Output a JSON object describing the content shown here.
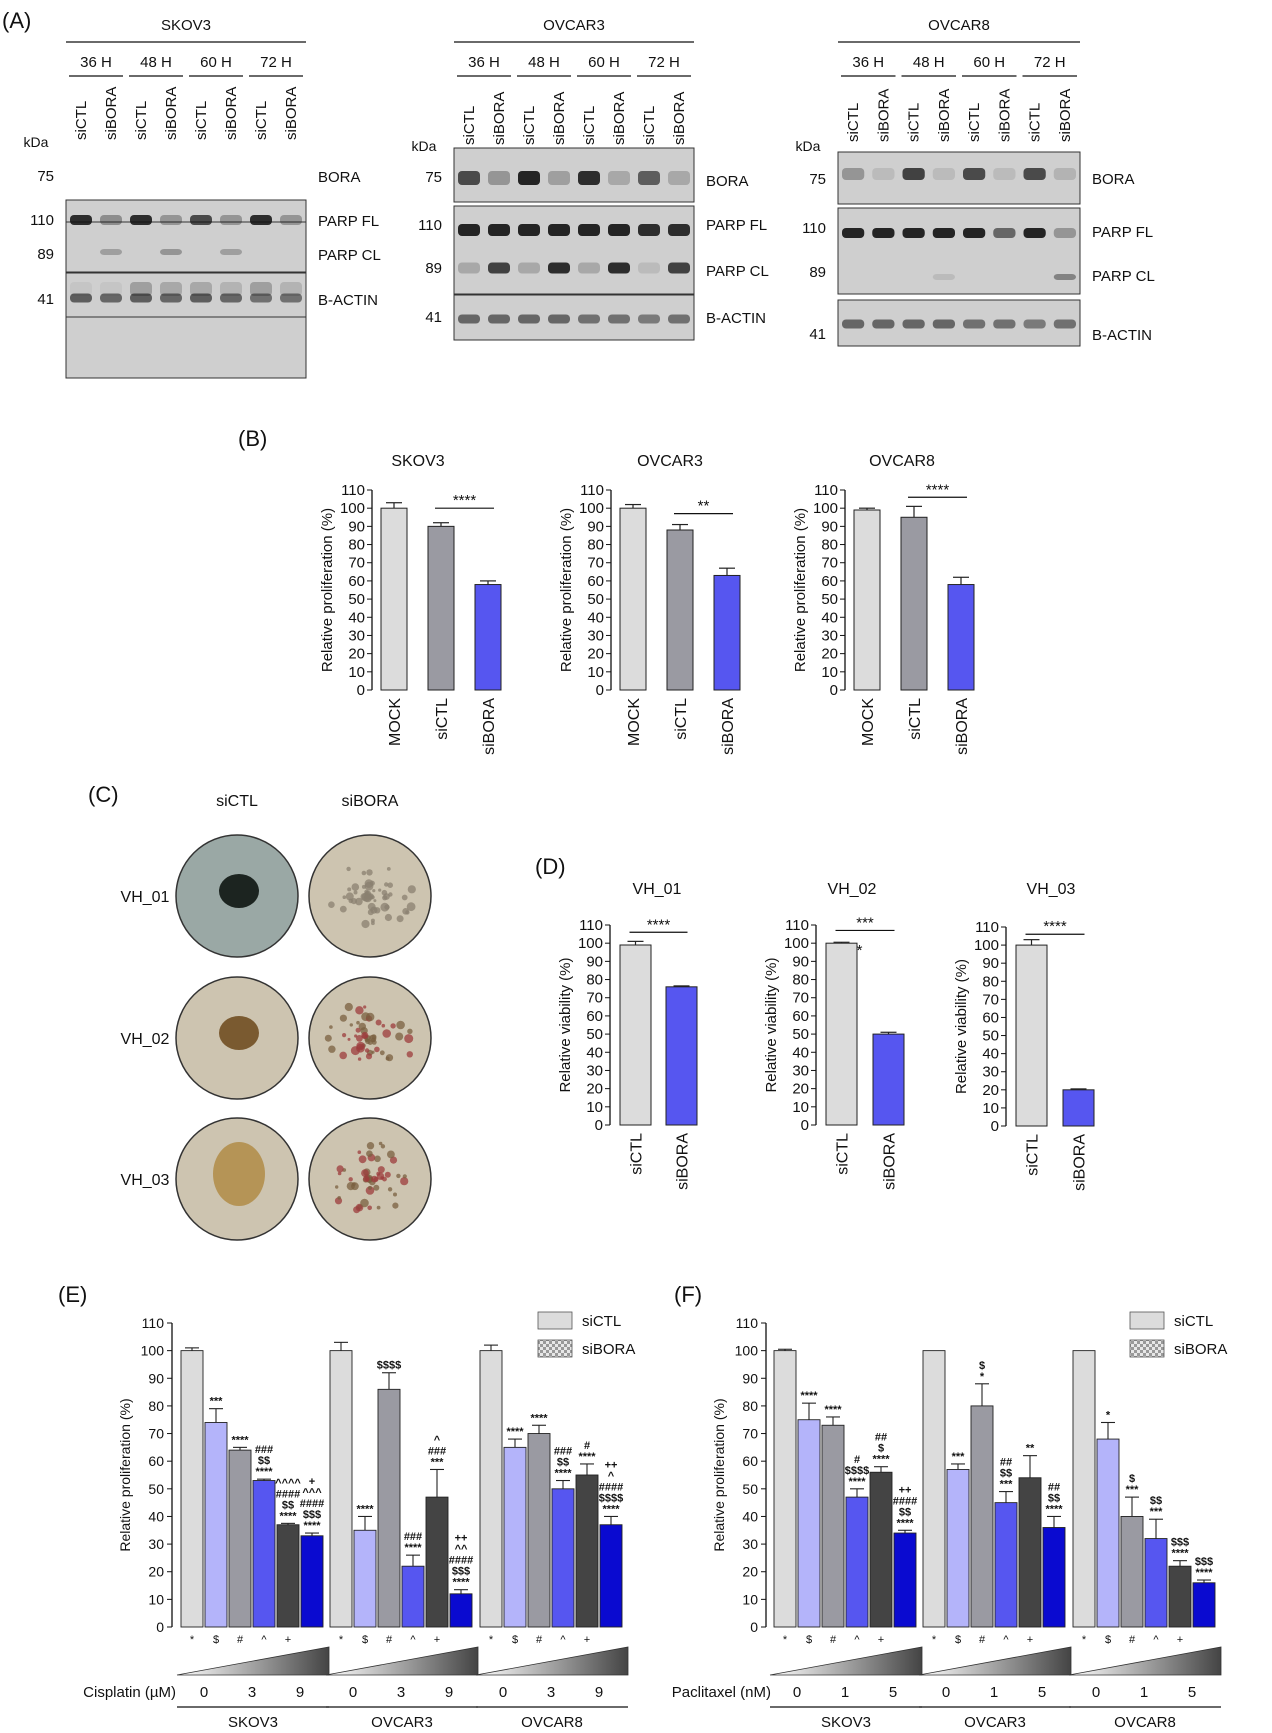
{
  "panels": {
    "A": "(A)",
    "B": "(B)",
    "C": "(C)",
    "D": "(D)",
    "E": "(E)",
    "F": "(F)"
  },
  "colors": {
    "mock": "#dcdcdc",
    "ctl": "#9a9aa2",
    "bora": "#5656f0",
    "light": "#b4b4fa",
    "dark": "#444444",
    "navy": "#0a0ad0"
  },
  "blots": {
    "kda": "kDa",
    "lanes": [
      "siCTL",
      "siBORA",
      "siCTL",
      "siBORA",
      "siCTL",
      "siBORA",
      "siCTL",
      "siBORA"
    ],
    "times": [
      "36 H",
      "48 H",
      "60 H",
      "72 H"
    ],
    "cells": [
      {
        "name": "SKOV3",
        "markers": {
          "m75": "75",
          "m110": "110",
          "m89": "89",
          "m41": "41"
        },
        "bands": [
          "BORA",
          "PARP FL",
          "PARP CL",
          "B-ACTIN"
        ]
      },
      {
        "name": "OVCAR3",
        "markers": {
          "m75": "75",
          "m110": "110",
          "m89": "89",
          "m41": "41"
        },
        "bands": [
          "BORA",
          "PARP FL",
          "PARP CL",
          "B-ACTIN"
        ]
      },
      {
        "name": "OVCAR8",
        "markers": {
          "m75": "75",
          "m110": "110",
          "m89": "89",
          "m41": "41"
        },
        "bands": [
          "BORA",
          "PARP FL",
          "PARP CL",
          "B-ACTIN"
        ]
      }
    ]
  },
  "organoids": {
    "cols": [
      "siCTL",
      "siBORA"
    ],
    "rows": [
      "VH_01",
      "VH_02",
      "VH_03"
    ]
  },
  "chart_data": [
    {
      "id": "B1",
      "type": "bar",
      "title": "SKOV3",
      "ylabel": "Relative proliferation (%)",
      "ylim": [
        0,
        110
      ],
      "yticks": [
        0,
        10,
        20,
        30,
        40,
        50,
        60,
        70,
        80,
        90,
        100,
        110
      ],
      "categories": [
        "MOCK",
        "siCTL",
        "siBORA"
      ],
      "values": [
        100,
        90,
        58
      ],
      "errors": [
        3,
        2,
        2
      ],
      "bar_colors": [
        "#dcdcdc",
        "#9a9aa2",
        "#5656f0"
      ],
      "sig": {
        "label": "****",
        "from": 1,
        "to": 2,
        "y": 100
      }
    },
    {
      "id": "B2",
      "type": "bar",
      "title": "OVCAR3",
      "ylabel": "Relative proliferation (%)",
      "ylim": [
        0,
        110
      ],
      "yticks": [
        0,
        10,
        20,
        30,
        40,
        50,
        60,
        70,
        80,
        90,
        100,
        110
      ],
      "categories": [
        "MOCK",
        "siCTL",
        "siBORA"
      ],
      "values": [
        100,
        88,
        63
      ],
      "errors": [
        2,
        3,
        4
      ],
      "bar_colors": [
        "#dcdcdc",
        "#9a9aa2",
        "#5656f0"
      ],
      "sig": {
        "label": "**",
        "from": 1,
        "to": 2,
        "y": 97
      }
    },
    {
      "id": "B3",
      "type": "bar",
      "title": "OVCAR8",
      "ylabel": "Relative proliferation (%)",
      "ylim": [
        0,
        110
      ],
      "yticks": [
        0,
        10,
        20,
        30,
        40,
        50,
        60,
        70,
        80,
        90,
        100,
        110
      ],
      "categories": [
        "MOCK",
        "siCTL",
        "siBORA"
      ],
      "values": [
        99,
        95,
        58
      ],
      "errors": [
        1,
        6,
        4
      ],
      "bar_colors": [
        "#dcdcdc",
        "#9a9aa2",
        "#5656f0"
      ],
      "sig": {
        "label": "****",
        "from": 1,
        "to": 2,
        "y": 106
      }
    },
    {
      "id": "D1",
      "type": "bar",
      "title": "VH_01",
      "ylabel": "Relative viability  (%)",
      "ylim": [
        0,
        110
      ],
      "yticks": [
        0,
        10,
        20,
        30,
        40,
        50,
        60,
        70,
        80,
        90,
        100,
        110
      ],
      "categories": [
        "siCTL",
        "siBORA"
      ],
      "values": [
        99,
        76
      ],
      "errors": [
        2,
        0.5
      ],
      "bar_colors": [
        "#dcdcdc",
        "#5656f0"
      ],
      "sig": {
        "label": "****",
        "from": 0,
        "to": 1,
        "y": 106
      }
    },
    {
      "id": "D2",
      "type": "bar",
      "title": "VH_02",
      "ylabel": "Relative viability  (%)",
      "ylim": [
        0,
        110
      ],
      "yticks": [
        0,
        10,
        20,
        30,
        40,
        50,
        60,
        70,
        80,
        90,
        100,
        110
      ],
      "categories": [
        "siCTL",
        "siBORA"
      ],
      "values": [
        100,
        50
      ],
      "errors": [
        0.5,
        1
      ],
      "bar_colors": [
        "#dcdcdc",
        "#5656f0"
      ],
      "sig": {
        "label": "***",
        "from": 0,
        "to": 1,
        "y": 107
      },
      "extra": {
        "label": "*",
        "cat": 0,
        "y": 100
      }
    },
    {
      "id": "D3",
      "type": "bar",
      "title": "VH_03",
      "ylabel": "Relative viability  (%)",
      "ylim": [
        0,
        110
      ],
      "yticks": [
        0,
        10,
        20,
        30,
        40,
        50,
        60,
        70,
        80,
        90,
        100,
        110
      ],
      "categories": [
        "siCTL",
        "siBORA"
      ],
      "values": [
        100,
        20
      ],
      "errors": [
        3,
        0.5
      ],
      "bar_colors": [
        "#dcdcdc",
        "#5656f0"
      ],
      "sig": {
        "label": "****",
        "from": 0,
        "to": 1,
        "y": 106
      }
    },
    {
      "id": "E",
      "type": "bar",
      "ylabel": "Relative proliferation (%)",
      "ylim": [
        0,
        110
      ],
      "yticks": [
        0,
        10,
        20,
        30,
        40,
        50,
        60,
        70,
        80,
        90,
        100,
        110
      ],
      "legend": [
        "siCTL",
        "siBORA"
      ],
      "drug": "Cisplatin (µM)",
      "doses": [
        "0",
        "3",
        "9"
      ],
      "markers": [
        "*",
        "$",
        "#",
        "^",
        "+"
      ],
      "groups": [
        {
          "name": "SKOV3",
          "values": [
            100,
            74,
            64,
            53,
            37,
            33
          ],
          "errors": [
            1,
            5,
            1,
            0.5,
            0.5,
            1
          ],
          "ann": [
            "",
            "***",
            "****",
            "###\n$$\n****",
            "^^^^\n####\n$$\n****",
            "+\n^^^\n####\n$$$\n****"
          ]
        },
        {
          "name": "OVCAR3",
          "values": [
            100,
            35,
            86,
            22,
            47,
            12
          ],
          "errors": [
            3,
            5,
            6,
            4,
            10,
            1.5
          ],
          "ann": [
            "",
            "****",
            "$$$$",
            "###\n****",
            "^\n###\n***",
            "++\n^^\n####\n$$$\n****"
          ]
        },
        {
          "name": "OVCAR8",
          "values": [
            100,
            65,
            70,
            50,
            55,
            37
          ],
          "errors": [
            2,
            3,
            3,
            3,
            4,
            3
          ],
          "ann": [
            "",
            "****",
            "****",
            "###\n$$\n****",
            "#\n****",
            "++\n^\n####\n$$$$\n****"
          ]
        }
      ]
    },
    {
      "id": "F",
      "type": "bar",
      "ylabel": "Relative proliferation (%)",
      "ylim": [
        0,
        110
      ],
      "yticks": [
        0,
        10,
        20,
        30,
        40,
        50,
        60,
        70,
        80,
        90,
        100,
        110
      ],
      "legend": [
        "siCTL",
        "siBORA"
      ],
      "drug": "Paclitaxel (nM)",
      "doses": [
        "0",
        "1",
        "5"
      ],
      "markers": [
        "*",
        "$",
        "#",
        "^",
        "+"
      ],
      "groups": [
        {
          "name": "SKOV3",
          "values": [
            100,
            75,
            73,
            47,
            56,
            34
          ],
          "errors": [
            0.5,
            6,
            3,
            3,
            2,
            1
          ],
          "ann": [
            "",
            "****",
            "****",
            "#\n$$$$\n****",
            "##\n$\n****",
            "++\n####\n$$\n****"
          ]
        },
        {
          "name": "OVCAR3",
          "values": [
            100,
            57,
            80,
            45,
            54,
            36
          ],
          "errors": [
            0,
            2,
            8,
            4,
            8,
            4
          ],
          "ann": [
            "",
            "***",
            "$\n*",
            "##\n$$\n***",
            "**",
            "##\n$$\n****"
          ]
        },
        {
          "name": "OVCAR8",
          "values": [
            100,
            68,
            40,
            32,
            22,
            16
          ],
          "errors": [
            0,
            6,
            7,
            7,
            2,
            1
          ],
          "ann": [
            "",
            "*",
            "$\n***",
            "$$\n***",
            "$$$\n****",
            "$$$\n****"
          ]
        }
      ]
    }
  ]
}
